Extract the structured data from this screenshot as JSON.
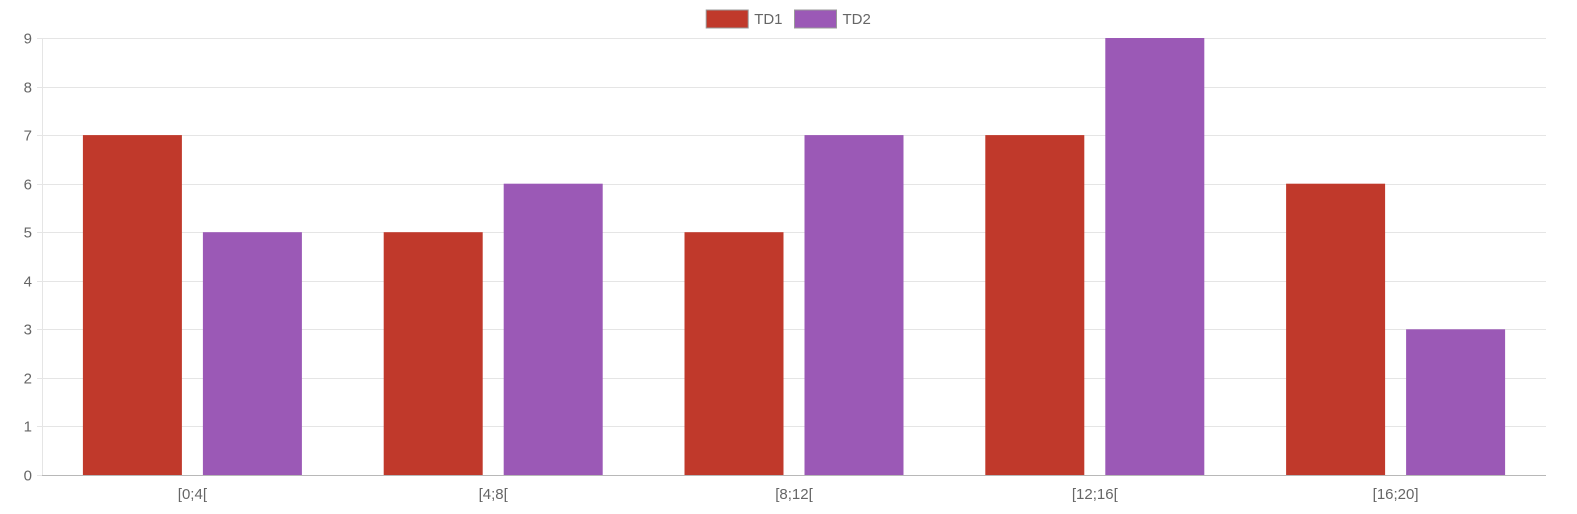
{
  "chart_data": {
    "type": "bar",
    "categories": [
      "[0;4[",
      "[4;8[",
      "[8;12[",
      "[12;16[",
      "[16;20]"
    ],
    "series": [
      {
        "name": "TD1",
        "color": "#c0392b",
        "values": [
          7,
          5,
          5,
          7,
          6
        ]
      },
      {
        "name": "TD2",
        "color": "#9b59b6",
        "values": [
          5,
          6,
          7,
          9,
          3
        ]
      }
    ],
    "ylim": [
      0,
      9
    ],
    "yticks": [
      0,
      1,
      2,
      3,
      4,
      5,
      6,
      7,
      8,
      9
    ],
    "grid": true,
    "legend_position": "top-center",
    "title": "",
    "xlabel": "",
    "ylabel": ""
  }
}
